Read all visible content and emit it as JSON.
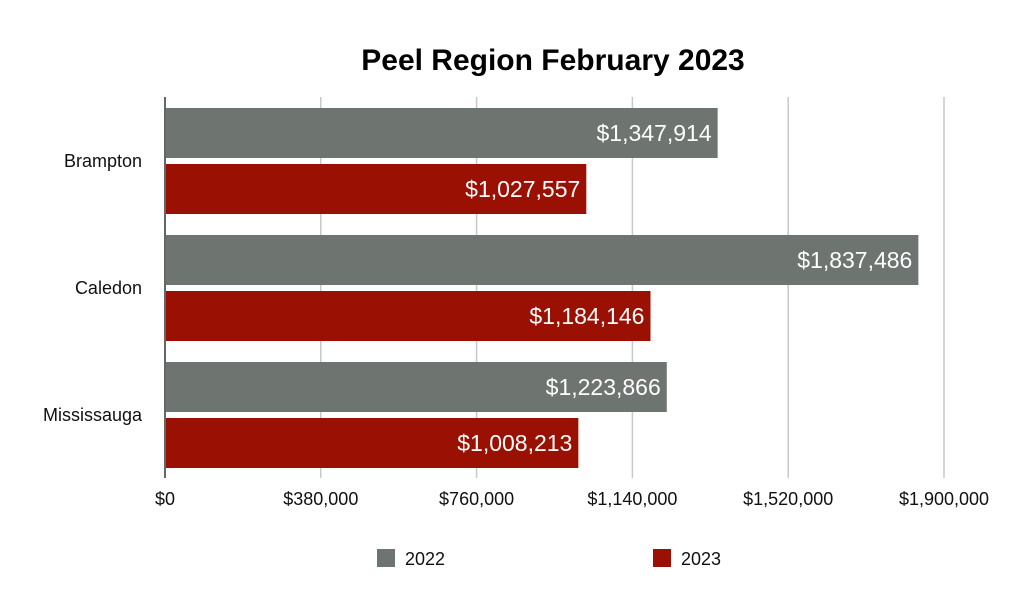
{
  "chart_data": {
    "type": "bar",
    "orientation": "horizontal",
    "title": "Peel Region February 2023",
    "categories": [
      "Brampton",
      "Caledon",
      "Mississauga"
    ],
    "series": [
      {
        "name": "2022",
        "color": "#6e7470",
        "values": [
          1347914,
          1837486,
          1223866
        ],
        "labels": [
          "$1,347,914",
          "$1,837,486",
          "$1,223,866"
        ]
      },
      {
        "name": "2023",
        "color": "#9a1104",
        "values": [
          1027557,
          1184146,
          1008213
        ],
        "labels": [
          "$1,027,557",
          "$1,184,146",
          "$1,008,213"
        ]
      }
    ],
    "xlim": [
      0,
      1900000
    ],
    "xticks": [
      0,
      380000,
      760000,
      1140000,
      1520000,
      1900000
    ],
    "xtick_labels": [
      "$0",
      "$380,000",
      "$760,000",
      "$1,140,000",
      "$1,520,000",
      "$1,900,000"
    ],
    "grid": true,
    "legend_position": "bottom"
  }
}
